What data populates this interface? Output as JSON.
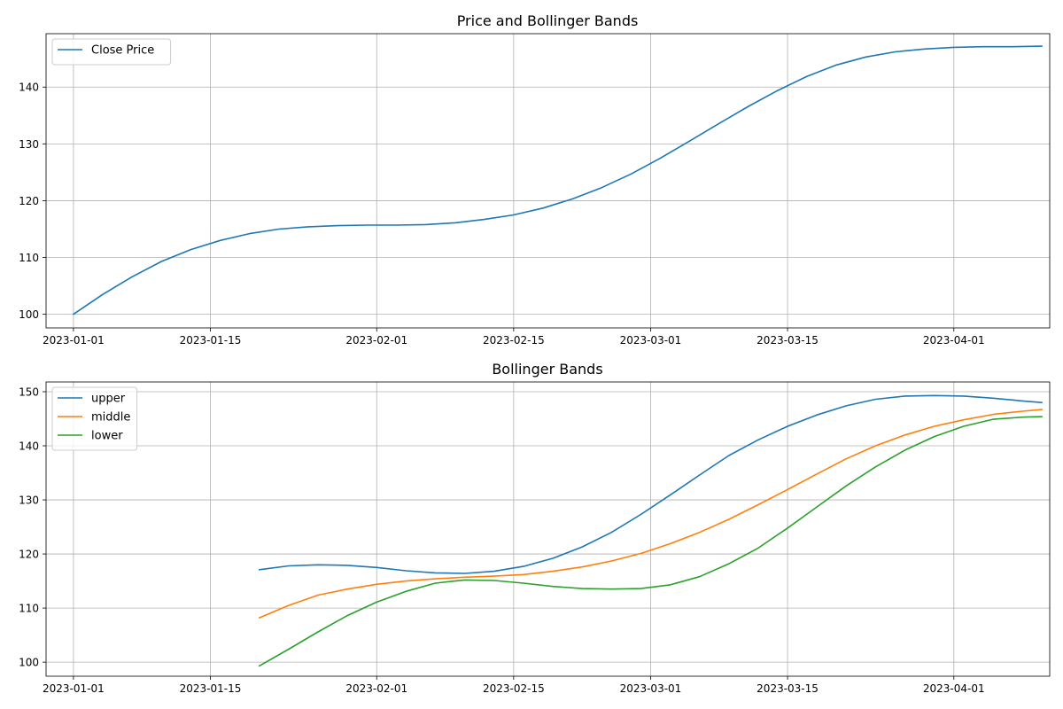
{
  "chart_data": [
    {
      "type": "line",
      "title": "Price and Bollinger Bands",
      "xlabel": "",
      "ylabel": "",
      "x_range_days": [
        -2.8,
        99.8
      ],
      "ylim": [
        97.6,
        149.4
      ],
      "x_ticks": [
        {
          "day": 0,
          "label": "2023-01-01"
        },
        {
          "day": 14,
          "label": "2023-01-15"
        },
        {
          "day": 31,
          "label": "2023-02-01"
        },
        {
          "day": 45,
          "label": "2023-02-15"
        },
        {
          "day": 59,
          "label": "2023-03-01"
        },
        {
          "day": 73,
          "label": "2023-03-15"
        },
        {
          "day": 90,
          "label": "2023-04-01"
        }
      ],
      "y_ticks": [
        100,
        110,
        120,
        130,
        140
      ],
      "grid": true,
      "legend": "top-left",
      "series": [
        {
          "name": "Close Price",
          "color": "#1f77b4",
          "x": [
            0,
            3,
            6,
            9,
            12,
            15,
            18,
            21,
            24,
            27,
            30,
            33,
            36,
            39,
            42,
            45,
            48,
            51,
            54,
            57,
            60,
            63,
            66,
            69,
            72,
            75,
            78,
            81,
            84,
            87,
            90,
            93,
            96,
            99
          ],
          "y": [
            100.0,
            103.5,
            106.6,
            109.3,
            111.4,
            113.0,
            114.2,
            115.0,
            115.4,
            115.6,
            115.7,
            115.7,
            115.8,
            116.1,
            116.7,
            117.5,
            118.7,
            120.3,
            122.3,
            124.7,
            127.5,
            130.5,
            133.6,
            136.6,
            139.4,
            141.9,
            143.9,
            145.3,
            146.2,
            146.7,
            147.0,
            147.1,
            147.1,
            147.2
          ]
        }
      ]
    },
    {
      "type": "line",
      "title": "Bollinger Bands",
      "xlabel": "",
      "ylabel": "",
      "x_range_days": [
        -2.8,
        99.8
      ],
      "ylim": [
        97.4,
        151.8
      ],
      "x_ticks": [
        {
          "day": 0,
          "label": "2023-01-01"
        },
        {
          "day": 14,
          "label": "2023-01-15"
        },
        {
          "day": 31,
          "label": "2023-02-01"
        },
        {
          "day": 45,
          "label": "2023-02-15"
        },
        {
          "day": 59,
          "label": "2023-03-01"
        },
        {
          "day": 73,
          "label": "2023-03-15"
        },
        {
          "day": 90,
          "label": "2023-04-01"
        }
      ],
      "y_ticks": [
        100,
        110,
        120,
        130,
        140,
        150
      ],
      "grid": true,
      "legend": "top-left",
      "series": [
        {
          "name": "upper",
          "color": "#1f77b4",
          "x": [
            19,
            22,
            25,
            28,
            31,
            34,
            37,
            40,
            43,
            46,
            49,
            52,
            55,
            58,
            61,
            64,
            67,
            70,
            73,
            76,
            79,
            82,
            85,
            88,
            91,
            94,
            97,
            99
          ],
          "y": [
            117.1,
            117.8,
            118.0,
            117.9,
            117.5,
            116.9,
            116.5,
            116.4,
            116.8,
            117.7,
            119.2,
            121.3,
            124.0,
            127.3,
            130.9,
            134.6,
            138.2,
            141.1,
            143.6,
            145.7,
            147.4,
            148.6,
            149.2,
            149.3,
            149.2,
            148.8,
            148.3,
            148.0
          ]
        },
        {
          "name": "middle",
          "color": "#ff7f0e",
          "x": [
            19,
            22,
            25,
            28,
            31,
            34,
            37,
            40,
            43,
            46,
            49,
            52,
            55,
            58,
            61,
            64,
            67,
            70,
            73,
            76,
            79,
            82,
            85,
            88,
            91,
            94,
            97,
            99
          ],
          "y": [
            108.2,
            110.5,
            112.4,
            113.5,
            114.4,
            115.0,
            115.4,
            115.7,
            115.9,
            116.2,
            116.8,
            117.6,
            118.7,
            120.1,
            121.9,
            124.0,
            126.4,
            129.1,
            131.9,
            134.8,
            137.6,
            140.0,
            142.0,
            143.6,
            144.8,
            145.8,
            146.4,
            146.7
          ]
        },
        {
          "name": "lower",
          "color": "#2ca02c",
          "x": [
            19,
            22,
            25,
            28,
            31,
            34,
            37,
            40,
            43,
            46,
            49,
            52,
            55,
            58,
            61,
            64,
            67,
            70,
            73,
            76,
            79,
            82,
            85,
            88,
            91,
            94,
            97,
            99
          ],
          "y": [
            99.3,
            102.4,
            105.6,
            108.6,
            111.1,
            113.1,
            114.6,
            115.2,
            115.1,
            114.6,
            114.0,
            113.6,
            113.5,
            113.6,
            114.3,
            115.8,
            118.2,
            121.1,
            124.8,
            128.7,
            132.6,
            136.1,
            139.2,
            141.7,
            143.6,
            144.9,
            145.3,
            145.4
          ]
        }
      ]
    }
  ]
}
